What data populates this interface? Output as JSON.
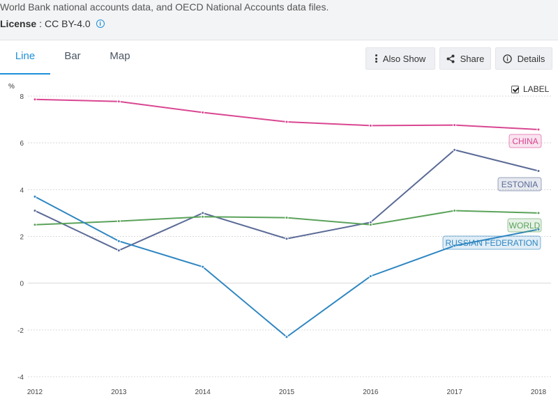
{
  "header": {
    "source_text": "World Bank national accounts data, and OECD National Accounts data files.",
    "license_key": "License",
    "license_sep": ":",
    "license_value": "CC BY-4.0",
    "info_icon": "info-icon"
  },
  "tabs": [
    {
      "label": "Line",
      "active": true
    },
    {
      "label": "Bar",
      "active": false
    },
    {
      "label": "Map",
      "active": false
    }
  ],
  "toolbar": {
    "also_show_label": "Also Show",
    "also_show_icon": "vertical-dots-icon",
    "share_label": "Share",
    "share_icon": "share-icon",
    "details_label": "Details",
    "details_icon": "info-icon"
  },
  "label_toggle": {
    "label": "LABEL",
    "checked": true
  },
  "colors": {
    "china": "#d94691",
    "estonia": "#5a6a96",
    "world": "#5aa25a",
    "russia": "#2e86c1",
    "grid": "#d8d8d8",
    "accent": "#1d8fd8"
  },
  "chart_data": {
    "type": "line",
    "ylabel": "%",
    "ylim": [
      -4,
      8
    ],
    "yticks": [
      8,
      6,
      4,
      2,
      0,
      -2,
      -4
    ],
    "ytick_labels": [
      "8",
      "6",
      "4",
      "2",
      "0",
      "-2",
      "-4"
    ],
    "x": [
      2012,
      2013,
      2014,
      2015,
      2016,
      2017,
      2018
    ],
    "x_labels": [
      "2012",
      "2013",
      "2014",
      "2015",
      "2016",
      "2017",
      "2018"
    ],
    "grid": true,
    "series": [
      {
        "name": "CHINA",
        "color_key": "china",
        "values": [
          7.86,
          7.77,
          7.3,
          6.9,
          6.74,
          6.76,
          6.57
        ]
      },
      {
        "name": "ESTONIA",
        "color_key": "estonia",
        "values": [
          3.1,
          1.4,
          3.0,
          1.9,
          2.6,
          5.7,
          4.8
        ]
      },
      {
        "name": "WORLD",
        "color_key": "world",
        "values": [
          2.5,
          2.65,
          2.84,
          2.8,
          2.5,
          3.1,
          3.0
        ]
      },
      {
        "name": "RUSSIAN FEDERATION",
        "color_key": "russia",
        "values": [
          3.7,
          1.8,
          0.7,
          -2.3,
          0.3,
          1.6,
          2.3
        ]
      }
    ]
  }
}
